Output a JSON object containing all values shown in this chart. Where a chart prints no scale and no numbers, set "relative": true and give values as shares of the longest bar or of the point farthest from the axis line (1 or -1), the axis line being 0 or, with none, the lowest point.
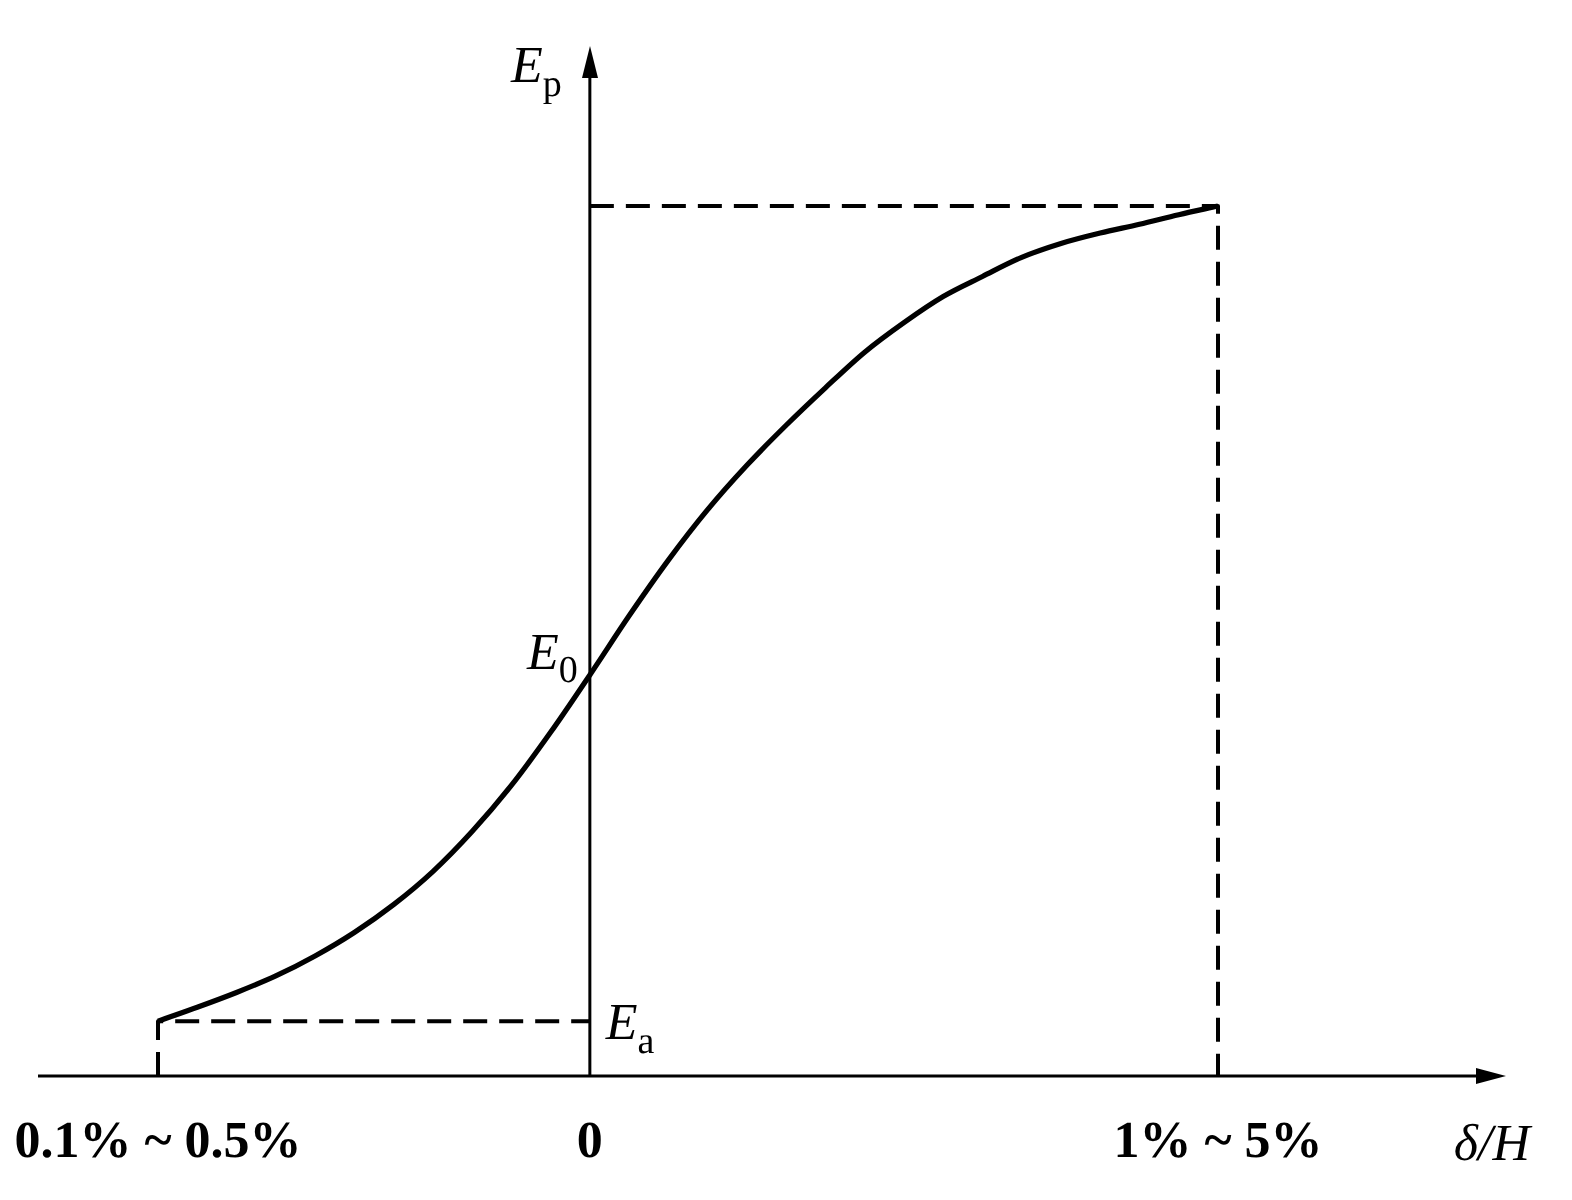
{
  "chart_data": {
    "type": "line",
    "relative": true,
    "xlabel": "δ/H",
    "ylabel": "E$_{p}$",
    "categories": [
      "0.1% ~ 0.5%",
      null,
      null,
      null,
      null,
      null,
      null,
      null,
      null,
      null,
      null,
      "0",
      null,
      null,
      null,
      null,
      null,
      null,
      null,
      null,
      null,
      null,
      null,
      null,
      null,
      null,
      null,
      "1% ~ 5%"
    ],
    "series": [
      {
        "color": "#000000",
        "line_style": "solid",
        "values": [
          0.063,
          0.079,
          0.096,
          0.115,
          0.138,
          0.165,
          0.197,
          0.235,
          0.281,
          0.334,
          0.395,
          0.461,
          0.529,
          0.593,
          0.651,
          0.702,
          0.748,
          0.791,
          0.832,
          0.866,
          0.896,
          0.919,
          0.941,
          0.957,
          0.969,
          0.979,
          0.99,
          1
        ]
      },
      {
        "color": "#000000",
        "line_style": "dashed",
        "x": [
          "0.1% ~ 0.5%",
          "0.1% ~ 0.5%",
          "0"
        ],
        "values": [
          0,
          0.063,
          0.063
        ]
      },
      {
        "color": "#000000",
        "line_style": "dashed",
        "x": [
          "0",
          "1% ~ 5%",
          "1% ~ 5%"
        ],
        "values": [
          1,
          1,
          0
        ]
      }
    ],
    "annotations": [
      {
        "text": "E$_{0}$",
        "x": "0",
        "y": 0.461
      },
      {
        "text": "E$_{a}$",
        "x": "0",
        "y": 0.063
      }
    ]
  }
}
